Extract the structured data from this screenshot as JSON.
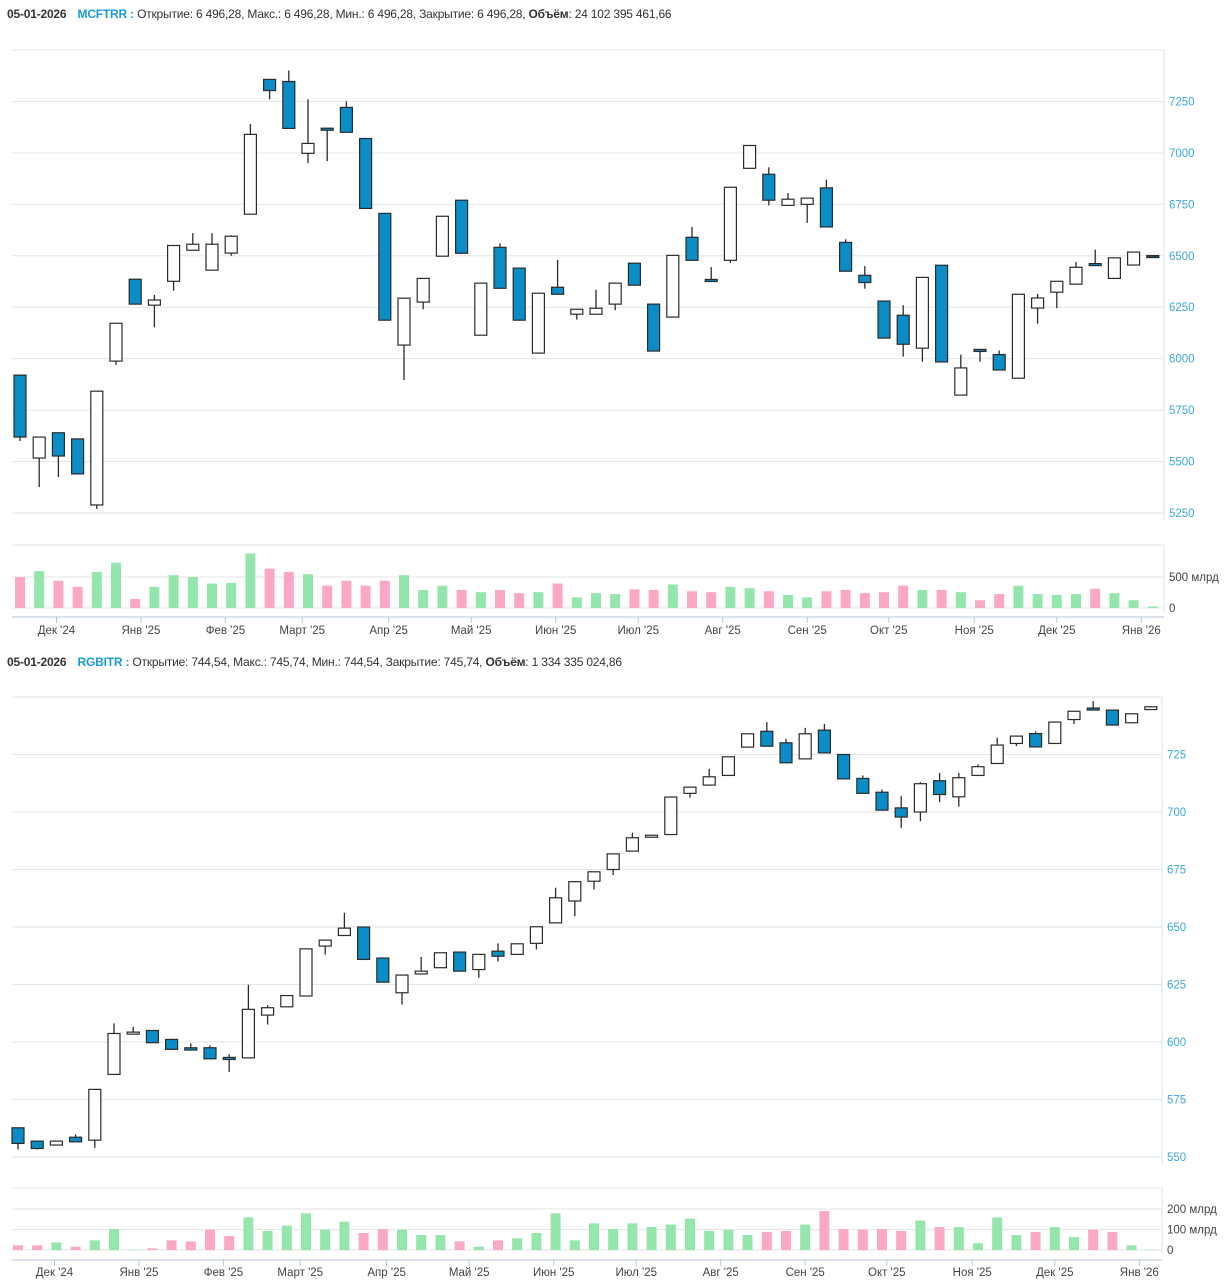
{
  "colors": {
    "down_body": "#0a8cc6",
    "up_body": "#ffffff",
    "candle_stroke": "#2b2b2b",
    "vol_up": "#95e6ad",
    "vol_down": "#fba8c5",
    "axis_label": "#3aa8dc",
    "ticker": "#1a9ad6",
    "grid": "#e6e6e6"
  },
  "charts": [
    {
      "header": {
        "date": "05-01-2026",
        "ticker": "MCFTRR :",
        "open_label": "Открытие:",
        "open": "6 496,28,",
        "high_label": "Макс.:",
        "high": "6 496,28,",
        "low_label": "Мин.:",
        "low": "6 496,28,",
        "close_label": "Закрытие:",
        "close": "6 496,28,",
        "volume_label": "Объём",
        "volume": ": 24 102 395 461,66"
      },
      "chart_data": {
        "type": "candlestick",
        "price_ylim": [
          5250,
          7500
        ],
        "price_ticks": [
          "5250",
          "5500",
          "5750",
          "6000",
          "6250",
          "6500",
          "6750",
          "7000",
          "7250"
        ],
        "volume_ticks": [
          "0",
          "500 млрд"
        ],
        "volume_unit": "млрд",
        "x_tick_labels": [
          "Дек '24",
          "Янв '25",
          "Фев '25",
          "Март '25",
          "Апр '25",
          "Май '25",
          "Июн '25",
          "Июл '25",
          "Авг '25",
          "Сен '25",
          "Окт '25",
          "Ноя '25",
          "Дек '25",
          "Янв '26"
        ],
        "ohlc": [
          [
            5920,
            5920,
            5600,
            5619
          ],
          [
            5517,
            5620,
            5376,
            5619
          ],
          [
            5640,
            5640,
            5425,
            5527
          ],
          [
            5610,
            5610,
            5440,
            5440
          ],
          [
            5289,
            5842,
            5270,
            5842
          ],
          [
            5988,
            6172,
            5970,
            6172
          ],
          [
            6386,
            6386,
            6265,
            6265
          ],
          [
            6260,
            6310,
            6153,
            6285
          ],
          [
            6376,
            6550,
            6330,
            6550
          ],
          [
            6527,
            6610,
            6527,
            6556
          ],
          [
            6430,
            6610,
            6430,
            6556
          ],
          [
            6513,
            6600,
            6500,
            6595
          ],
          [
            6702,
            7140,
            6702,
            7090
          ],
          [
            7357,
            7357,
            7260,
            7303
          ],
          [
            7347,
            7400,
            7119,
            7119
          ],
          [
            6998,
            7260,
            6950,
            7046
          ],
          [
            7120,
            7120,
            6960,
            7110
          ],
          [
            7221,
            7250,
            7100,
            7100
          ],
          [
            7070,
            7070,
            6730,
            6730
          ],
          [
            6706,
            6706,
            6187,
            6187
          ],
          [
            6066,
            6294,
            5896,
            6294
          ],
          [
            6275,
            6390,
            6240,
            6390
          ],
          [
            6498,
            6692,
            6498,
            6692
          ],
          [
            6770,
            6770,
            6512,
            6512
          ],
          [
            6114,
            6367,
            6114,
            6367
          ],
          [
            6541,
            6560,
            6342,
            6342
          ],
          [
            6440,
            6440,
            6187,
            6187
          ],
          [
            6027,
            6318,
            6027,
            6318
          ],
          [
            6347,
            6480,
            6313,
            6313
          ],
          [
            6216,
            6240,
            6190,
            6240
          ],
          [
            6216,
            6335,
            6216,
            6245
          ],
          [
            6265,
            6367,
            6235,
            6367
          ],
          [
            6464,
            6464,
            6357,
            6357
          ],
          [
            6265,
            6265,
            6037,
            6037
          ],
          [
            6202,
            6502,
            6202,
            6502
          ],
          [
            6590,
            6640,
            6478,
            6478
          ],
          [
            6385,
            6445,
            6375,
            6375
          ],
          [
            6478,
            6833,
            6465,
            6833
          ],
          [
            6925,
            7036,
            6925,
            7036
          ],
          [
            6896,
            6930,
            6745,
            6770
          ],
          [
            6745,
            6805,
            6745,
            6775
          ],
          [
            6750,
            6780,
            6660,
            6780
          ],
          [
            6830,
            6870,
            6640,
            6640
          ],
          [
            6565,
            6580,
            6425,
            6425
          ],
          [
            6405,
            6450,
            6340,
            6370
          ],
          [
            6280,
            6280,
            6100,
            6100
          ],
          [
            6211,
            6260,
            6010,
            6070
          ],
          [
            6051,
            6395,
            5985,
            6395
          ],
          [
            6454,
            6454,
            5984,
            5984
          ],
          [
            5823,
            6020,
            5823,
            5955
          ],
          [
            6045,
            6045,
            5985,
            6035
          ],
          [
            6020,
            6040,
            5945,
            5945
          ],
          [
            5905,
            6313,
            5905,
            6313
          ],
          [
            6246,
            6315,
            6170,
            6295
          ],
          [
            6323,
            6376,
            6245,
            6376
          ],
          [
            6362,
            6470,
            6362,
            6444
          ],
          [
            6462,
            6530,
            6455,
            6455
          ],
          [
            6390,
            6490,
            6390,
            6490
          ],
          [
            6455,
            6518,
            6455,
            6518
          ],
          [
            6496.28,
            6496.28,
            6496.28,
            6496.28
          ]
        ],
        "volume": [
          500,
          595,
          440,
          340,
          580,
          730,
          145,
          340,
          530,
          500,
          395,
          405,
          880,
          635,
          580,
          545,
          360,
          440,
          360,
          440,
          530,
          290,
          360,
          290,
          255,
          290,
          240,
          255,
          395,
          170,
          240,
          225,
          300,
          290,
          380,
          270,
          255,
          340,
          320,
          270,
          210,
          170,
          270,
          290,
          240,
          255,
          360,
          290,
          290,
          255,
          125,
          225,
          360,
          225,
          210,
          225,
          310,
          240,
          125,
          24
        ]
      }
    },
    {
      "header": {
        "date": "05-01-2026",
        "ticker": "RGBITR :",
        "open_label": "Открытие:",
        "open": "744,54,",
        "high_label": "Макс.:",
        "high": "745,74,",
        "low_label": "Мин.:",
        "low": "744,54,",
        "close_label": "Закрытие:",
        "close": "745,74,",
        "volume_label": "Объём",
        "volume": ": 1 334 335 024,86"
      },
      "chart_data": {
        "type": "candlestick",
        "price_ylim": [
          550,
          750
        ],
        "price_ticks": [
          "550",
          "575",
          "600",
          "625",
          "650",
          "675",
          "700",
          "725"
        ],
        "volume_ticks": [
          "0",
          "100 млрд",
          "200 млрд"
        ],
        "volume_unit": "млрд",
        "x_tick_labels": [
          "Дек '24",
          "Янв '25",
          "Фев '25",
          "Март '25",
          "Апр '25",
          "Май '25",
          "Июн '25",
          "Июл '25",
          "Авг '25",
          "Сен '25",
          "Окт '25",
          "Ноя '25",
          "Дек '25",
          "Янв '26"
        ],
        "ohlc": [
          [
            562.7,
            562.7,
            553.3,
            555.9
          ],
          [
            556.9,
            556.9,
            553.3,
            553.7
          ],
          [
            555.2,
            556.9,
            555.2,
            556.9
          ],
          [
            558.6,
            559.8,
            556.6,
            556.6
          ],
          [
            557.3,
            579.4,
            554,
            579.4
          ],
          [
            585.9,
            608.1,
            585.9,
            603.7
          ],
          [
            604.0,
            606.6,
            604.0,
            604.3
          ],
          [
            605.0,
            605.0,
            599.7,
            599.7
          ],
          [
            601.1,
            601.5,
            596.8,
            596.8
          ],
          [
            597.5,
            599.4,
            596.5,
            596.5
          ],
          [
            597.5,
            598.5,
            592.7,
            592.7
          ],
          [
            593.3,
            594.6,
            586.9,
            592.4
          ],
          [
            593.1,
            624.9,
            593.1,
            614.2
          ],
          [
            611.7,
            616,
            607.6,
            614.9
          ],
          [
            615.3,
            620.2,
            615.3,
            620.2
          ],
          [
            620,
            640.5,
            620,
            640.5
          ],
          [
            641.7,
            644.3,
            638,
            644.3
          ],
          [
            646.3,
            656.2,
            646.3,
            649.5
          ],
          [
            650,
            650,
            635.9,
            635.9
          ],
          [
            636.5,
            636.5,
            626,
            626
          ],
          [
            621.4,
            629.1,
            616.3,
            629.1
          ],
          [
            629.6,
            637,
            629.6,
            630.8
          ],
          [
            632.3,
            638.8,
            632.3,
            638.8
          ],
          [
            639.1,
            639.1,
            630.8,
            630.8
          ],
          [
            631.5,
            638.1,
            627.9,
            638.1
          ],
          [
            639.5,
            642.9,
            635,
            637.3
          ],
          [
            638.1,
            642.7,
            638.1,
            642.7
          ],
          [
            642.9,
            650.1,
            640.2,
            650.1
          ],
          [
            651.8,
            667.1,
            651.8,
            662.7
          ],
          [
            661.3,
            669.7,
            654.7,
            669.7
          ],
          [
            669.9,
            674,
            666.3,
            674
          ],
          [
            675,
            681.8,
            672.6,
            681.8
          ],
          [
            683,
            691,
            683,
            688.8
          ],
          [
            689.7,
            690.2,
            689.5,
            689.9
          ],
          [
            690.2,
            706.5,
            690.2,
            706.5
          ],
          [
            708.1,
            710.8,
            706.2,
            710.8
          ],
          [
            711.7,
            718.8,
            711.7,
            715.3
          ],
          [
            715.9,
            724,
            715.9,
            724
          ],
          [
            728.2,
            734,
            728.2,
            734
          ],
          [
            735.1,
            739.1,
            728.6,
            728.6
          ],
          [
            730.1,
            731.8,
            721.4,
            721.4
          ],
          [
            723.1,
            736.6,
            723.1,
            734
          ],
          [
            735.6,
            738.3,
            725.7,
            725.7
          ],
          [
            725,
            725,
            714.4,
            714.4
          ],
          [
            714.6,
            715.9,
            708.1,
            708.1
          ],
          [
            708.6,
            709.8,
            700.8,
            700.8
          ],
          [
            701.8,
            706.9,
            693.1,
            697.8
          ],
          [
            700,
            713,
            696,
            712.3
          ],
          [
            713.6,
            717,
            704.3,
            707.6
          ],
          [
            706.6,
            717,
            702.3,
            714.9
          ],
          [
            715.9,
            720.7,
            715.9,
            719.7
          ],
          [
            721.1,
            732.3,
            721.1,
            729.1
          ],
          [
            729.8,
            733,
            728.6,
            733
          ],
          [
            734.1,
            735,
            728.3,
            728.3
          ],
          [
            729.8,
            739.1,
            729.8,
            739.1
          ],
          [
            740.2,
            743.8,
            738.3,
            743.8
          ],
          [
            745.2,
            748.2,
            744.8,
            745.0
          ],
          [
            744.3,
            744.3,
            737.8,
            737.8
          ],
          [
            738.8,
            742.7,
            738.8,
            742.7
          ],
          [
            744.54,
            745.74,
            744.54,
            745.74
          ]
        ],
        "volume": [
          23,
          23,
          37,
          16,
          47,
          102,
          2,
          8,
          47,
          42,
          99,
          68,
          159,
          93,
          119,
          179,
          99,
          138,
          83,
          102,
          99,
          73,
          73,
          42,
          16,
          47,
          57,
          83,
          179,
          47,
          130,
          102,
          130,
          112,
          124,
          153,
          93,
          99,
          73,
          88,
          93,
          124,
          190,
          102,
          99,
          102,
          93,
          143,
          112,
          112,
          33,
          159,
          73,
          88,
          112,
          63,
          99,
          88,
          23,
          1.3
        ]
      }
    }
  ]
}
